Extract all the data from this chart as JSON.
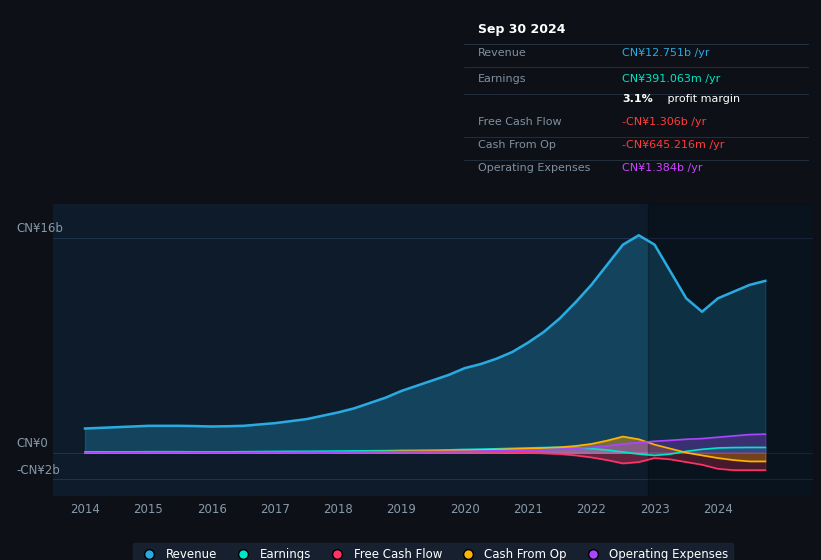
{
  "bg_color": "#0d1117",
  "plot_bg_color": "#0d1b2a",
  "grid_color": "#2a4060",
  "text_color": "#8899aa",
  "info_box": {
    "title": "Sep 30 2024",
    "rows": [
      {
        "label": "Revenue",
        "value": "CN¥12.751b /yr",
        "value_color": "#29abe2"
      },
      {
        "label": "Earnings",
        "value": "CN¥391.063m /yr",
        "value_color": "#00e5c8"
      },
      {
        "label": "",
        "value": "3.1% profit margin",
        "value_color": "#ffffff"
      },
      {
        "label": "Free Cash Flow",
        "value": "-CN¥1.306b /yr",
        "value_color": "#ff3b3b"
      },
      {
        "label": "Cash From Op",
        "value": "-CN¥645.216m /yr",
        "value_color": "#ff3b3b"
      },
      {
        "label": "Operating Expenses",
        "value": "CN¥1.384b /yr",
        "value_color": "#cc44ff"
      }
    ]
  },
  "y_labels": [
    "CN¥16b",
    "CN¥0",
    "-CN¥2b"
  ],
  "y_values": [
    16,
    0,
    -2
  ],
  "x_ticks": [
    2014,
    2015,
    2016,
    2017,
    2018,
    2019,
    2020,
    2021,
    2022,
    2023,
    2024
  ],
  "ylim": [
    -3.2,
    18.5
  ],
  "xlim": [
    2013.5,
    2025.5
  ],
  "revenue_color": "#29abe2",
  "earnings_color": "#00e5c8",
  "fcf_color": "#ff3366",
  "cashop_color": "#ffb300",
  "opex_color": "#aa44ff",
  "years": [
    2014.0,
    2014.25,
    2014.5,
    2014.75,
    2015.0,
    2015.25,
    2015.5,
    2015.75,
    2016.0,
    2016.25,
    2016.5,
    2016.75,
    2017.0,
    2017.25,
    2017.5,
    2017.75,
    2018.0,
    2018.25,
    2018.5,
    2018.75,
    2019.0,
    2019.25,
    2019.5,
    2019.75,
    2020.0,
    2020.25,
    2020.5,
    2020.75,
    2021.0,
    2021.25,
    2021.5,
    2021.75,
    2022.0,
    2022.25,
    2022.5,
    2022.75,
    2023.0,
    2023.25,
    2023.5,
    2023.75,
    2024.0,
    2024.25,
    2024.5,
    2024.75
  ],
  "revenue": [
    1.8,
    1.85,
    1.9,
    1.95,
    2.0,
    2.0,
    2.0,
    1.98,
    1.95,
    1.97,
    2.0,
    2.1,
    2.2,
    2.35,
    2.5,
    2.75,
    3.0,
    3.3,
    3.7,
    4.1,
    4.6,
    5.0,
    5.4,
    5.8,
    6.3,
    6.6,
    7.0,
    7.5,
    8.2,
    9.0,
    10.0,
    11.2,
    12.5,
    14.0,
    15.5,
    16.2,
    15.5,
    13.5,
    11.5,
    10.5,
    11.5,
    12.0,
    12.5,
    12.8
  ],
  "earnings": [
    0.05,
    0.06,
    0.06,
    0.06,
    0.07,
    0.07,
    0.07,
    0.06,
    0.06,
    0.06,
    0.07,
    0.08,
    0.09,
    0.1,
    0.1,
    0.11,
    0.12,
    0.13,
    0.14,
    0.15,
    0.17,
    0.18,
    0.19,
    0.21,
    0.24,
    0.26,
    0.29,
    0.32,
    0.35,
    0.38,
    0.4,
    0.38,
    0.3,
    0.2,
    0.05,
    -0.1,
    -0.2,
    -0.1,
    0.1,
    0.25,
    0.35,
    0.38,
    0.39,
    0.39
  ],
  "fcf": [
    0.0,
    0.0,
    0.01,
    0.01,
    0.01,
    0.01,
    0.01,
    0.01,
    0.0,
    0.0,
    0.0,
    0.0,
    0.0,
    0.0,
    0.0,
    0.01,
    0.04,
    0.05,
    0.06,
    0.06,
    0.08,
    0.09,
    0.1,
    0.1,
    0.1,
    0.08,
    0.07,
    0.04,
    0.0,
    -0.05,
    -0.1,
    -0.2,
    -0.35,
    -0.55,
    -0.8,
    -0.7,
    -0.4,
    -0.5,
    -0.7,
    -0.9,
    -1.2,
    -1.3,
    -1.3,
    -1.3
  ],
  "cashop": [
    0.0,
    0.0,
    0.0,
    0.01,
    0.01,
    0.01,
    0.01,
    0.01,
    0.01,
    0.01,
    0.02,
    0.02,
    0.02,
    0.03,
    0.03,
    0.04,
    0.05,
    0.06,
    0.07,
    0.08,
    0.1,
    0.11,
    0.13,
    0.15,
    0.18,
    0.2,
    0.23,
    0.27,
    0.3,
    0.35,
    0.4,
    0.5,
    0.65,
    0.9,
    1.2,
    1.0,
    0.6,
    0.3,
    0.0,
    -0.2,
    -0.4,
    -0.55,
    -0.65,
    -0.65
  ],
  "opex": [
    0.0,
    0.0,
    0.0,
    0.0,
    0.01,
    0.01,
    0.01,
    0.01,
    0.01,
    0.01,
    0.01,
    0.02,
    0.02,
    0.02,
    0.03,
    0.03,
    0.04,
    0.04,
    0.05,
    0.05,
    0.06,
    0.07,
    0.08,
    0.09,
    0.1,
    0.12,
    0.14,
    0.16,
    0.19,
    0.22,
    0.26,
    0.32,
    0.4,
    0.5,
    0.65,
    0.75,
    0.85,
    0.92,
    1.0,
    1.05,
    1.15,
    1.25,
    1.35,
    1.38
  ],
  "legend_items": [
    {
      "label": "Revenue",
      "color": "#29abe2"
    },
    {
      "label": "Earnings",
      "color": "#00e5c8"
    },
    {
      "label": "Free Cash Flow",
      "color": "#ff3366"
    },
    {
      "label": "Cash From Op",
      "color": "#ffb300"
    },
    {
      "label": "Operating Expenses",
      "color": "#aa44ff"
    }
  ]
}
